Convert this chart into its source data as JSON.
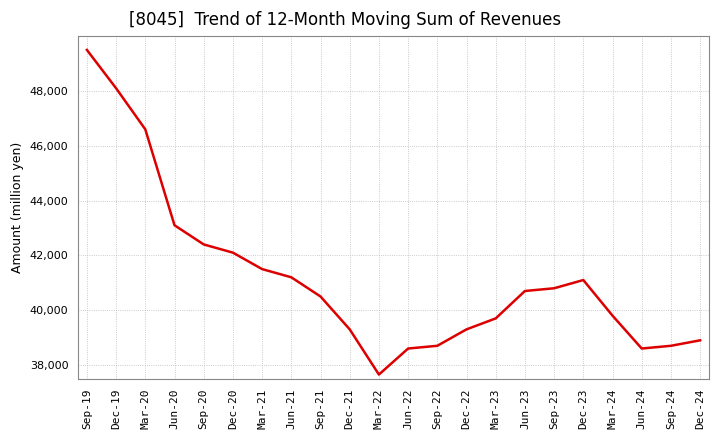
{
  "title": "[8045]  Trend of 12-Month Moving Sum of Revenues",
  "ylabel": "Amount (million yen)",
  "line_color": "#dd0000",
  "background_color": "#ffffff",
  "plot_bg_color": "#ffffff",
  "grid_color": "#bbbbbb",
  "x_labels": [
    "Sep-19",
    "Dec-19",
    "Mar-20",
    "Jun-20",
    "Sep-20",
    "Dec-20",
    "Mar-21",
    "Jun-21",
    "Sep-21",
    "Dec-21",
    "Mar-22",
    "Jun-22",
    "Sep-22",
    "Dec-22",
    "Mar-23",
    "Jun-23",
    "Sep-23",
    "Dec-23",
    "Mar-24",
    "Jun-24",
    "Sep-24",
    "Dec-24"
  ],
  "values": [
    49500,
    48100,
    46600,
    43100,
    42400,
    42100,
    41500,
    41200,
    40500,
    39300,
    37650,
    38600,
    38700,
    39300,
    39700,
    40700,
    40800,
    41100,
    39800,
    38600,
    38700,
    38900
  ],
  "ylim_min": 37500,
  "ylim_max": 50000,
  "yticks": [
    38000,
    40000,
    42000,
    44000,
    46000,
    48000
  ],
  "title_fontsize": 12,
  "tick_fontsize": 8,
  "ylabel_fontsize": 9,
  "line_width": 1.8
}
